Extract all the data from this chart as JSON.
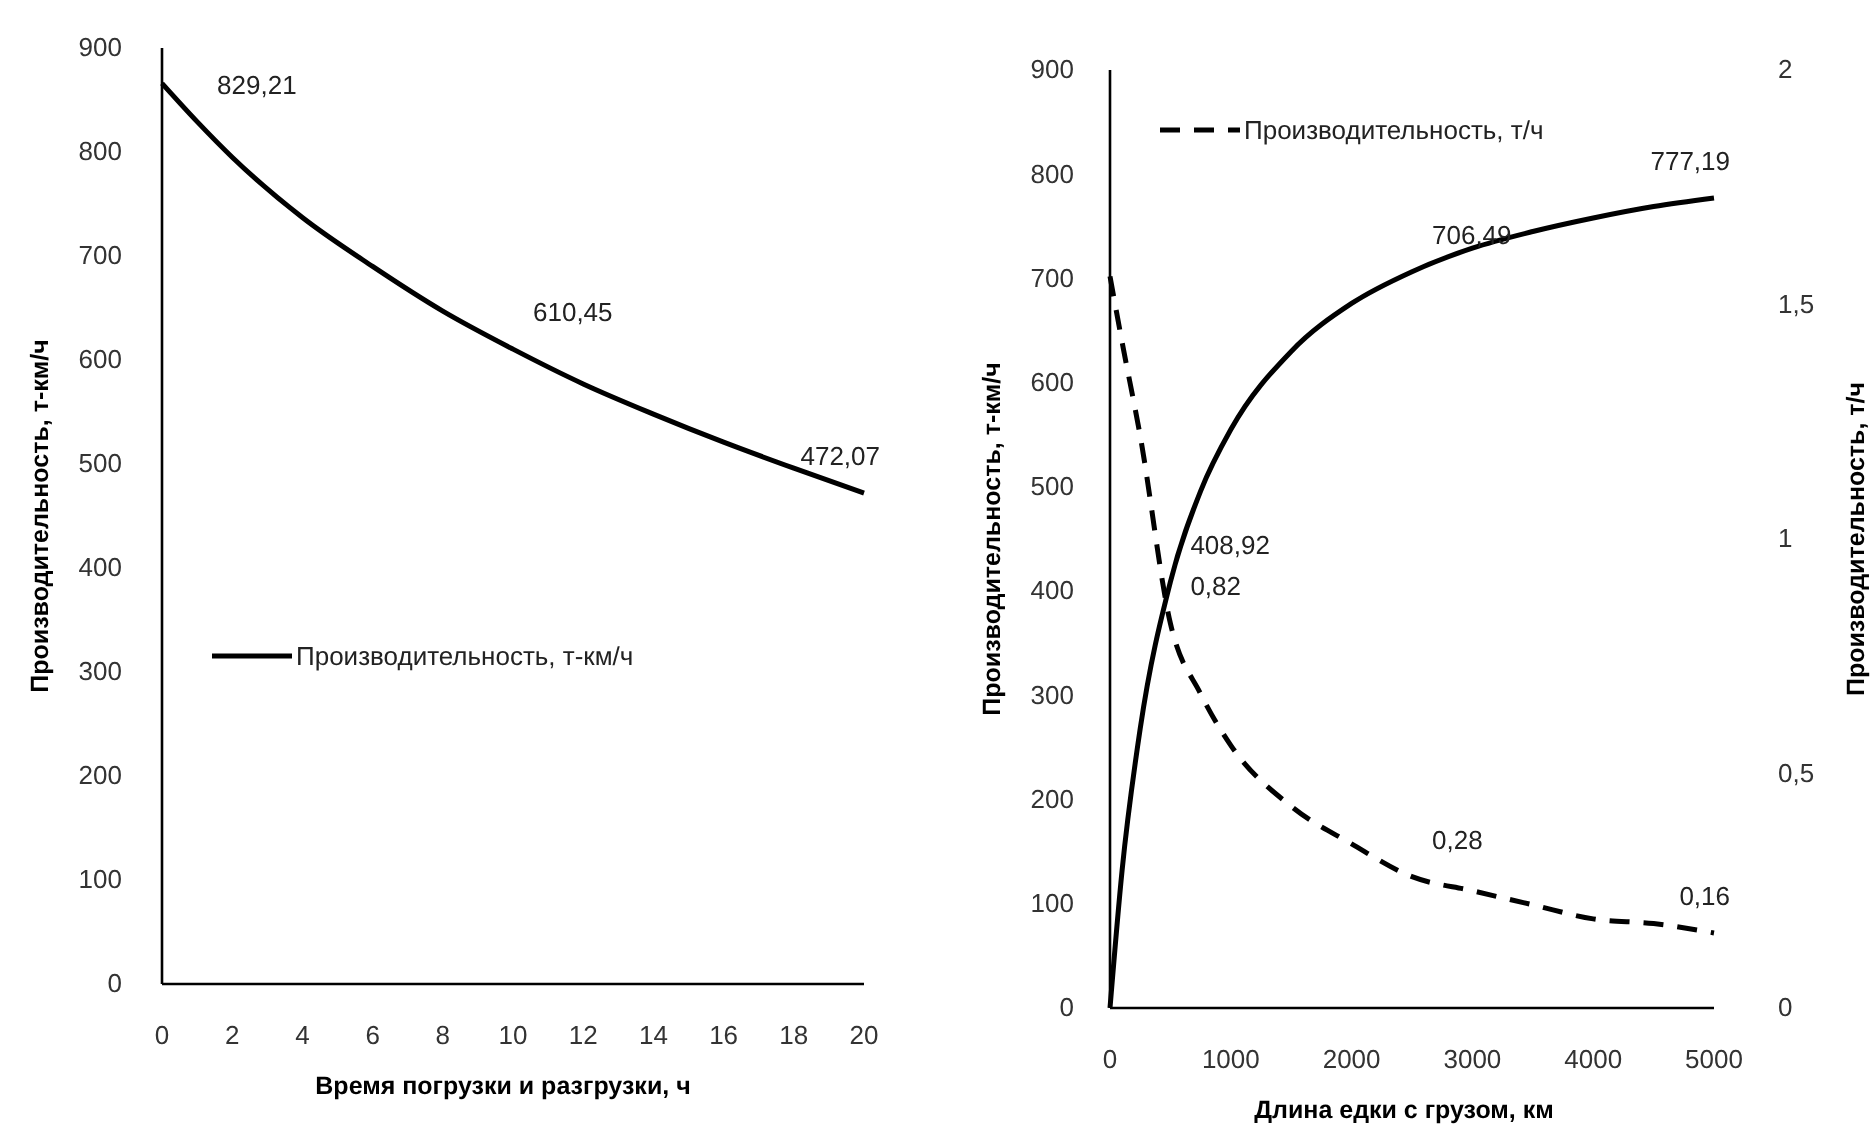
{
  "chart_data": [
    {
      "type": "line",
      "xlabel": "Время погрузки и разгрузки, ч",
      "ylabel": "Производительность, т-км/ч",
      "x": [
        0,
        1,
        2,
        4,
        6,
        8,
        10,
        12,
        14,
        16,
        18,
        20
      ],
      "xlim": [
        0,
        20
      ],
      "xticks": [
        0,
        2,
        4,
        6,
        8,
        10,
        12,
        14,
        16,
        18,
        20
      ],
      "ylim": [
        0,
        900
      ],
      "yticks": [
        0,
        100,
        200,
        300,
        400,
        500,
        600,
        700,
        800,
        900
      ],
      "grid": false,
      "legend": "left",
      "marker": "none",
      "series": [
        {
          "name": "Производительность, т-км/ч",
          "color": "#000000",
          "line_style": "solid",
          "values": [
            866,
            829.21,
            795,
            737,
            690,
            647,
            610.45,
            577,
            548,
            521,
            496,
            472.07
          ],
          "value_labels": [
            null,
            "829,21",
            null,
            null,
            null,
            null,
            "610,45",
            null,
            null,
            null,
            null,
            "472,07"
          ]
        }
      ]
    },
    {
      "type": "line",
      "xlabel": "Длина едки с грузом, км",
      "ylabel": "Производительность, т-км/ч",
      "y2label": "Производительность, т/ч",
      "x": [
        0,
        100,
        250,
        500,
        750,
        1000,
        1500,
        2000,
        2500,
        3000,
        3500,
        4000,
        4500,
        5000
      ],
      "xlim": [
        0,
        5000
      ],
      "xticks": [
        0,
        1000,
        2000,
        3000,
        4000,
        5000
      ],
      "ylim": [
        0,
        900
      ],
      "yticks": [
        0,
        100,
        200,
        300,
        400,
        500,
        600,
        700,
        800,
        900
      ],
      "y2lim": [
        0,
        2
      ],
      "y2ticks": [
        0,
        {
          "value": 0.5,
          "label": "0,5"
        },
        1,
        {
          "value": 1.5,
          "label": "1,5"
        },
        2
      ],
      "grid": false,
      "legend": "top left",
      "marker": "none",
      "series": [
        {
          "color": "#000000",
          "line_style": "solid",
          "values": [
            0,
            132,
            268,
            408.92,
            496,
            555,
            630,
            676,
            706.49,
            729,
            745,
            758,
            769,
            777.19
          ],
          "value_labels": [
            null,
            null,
            null,
            "408,92",
            null,
            null,
            null,
            null,
            "706,49",
            null,
            null,
            null,
            null,
            "777,19"
          ]
        },
        {
          "name": "Производительность, т/ч",
          "color": "#000000",
          "line_style": "dashed",
          "axis": "y2",
          "values": [
            1.56,
            1.42,
            1.22,
            0.82,
            0.67,
            0.56,
            0.43,
            0.35,
            0.28,
            0.25,
            0.22,
            0.19,
            0.18,
            0.16
          ],
          "value_labels": [
            null,
            null,
            null,
            "0,82",
            null,
            null,
            null,
            null,
            "0,28",
            null,
            null,
            null,
            null,
            "0,16"
          ]
        }
      ]
    }
  ]
}
